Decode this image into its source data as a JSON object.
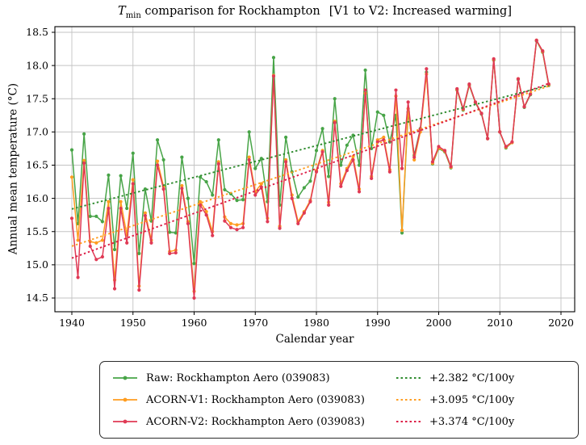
{
  "title": {
    "t": "T",
    "sub": "min",
    "main": " comparison for Rockhampton",
    "bracket": "[V1 to V2: Increased warming]"
  },
  "x_label": "Calendar year",
  "y_label": "Annual mean temperature (°C)",
  "chart_data": {
    "type": "line",
    "x_start": 1940,
    "x_end": 2018,
    "x_step": 1,
    "x_ticks": [
      1940,
      1950,
      1960,
      1970,
      1980,
      1990,
      2000,
      2010,
      2020
    ],
    "y_ticks": [
      14.5,
      15.0,
      15.5,
      16.0,
      16.5,
      17.0,
      17.5,
      18.0,
      18.5
    ],
    "xlim": [
      1937.2,
      2022.2
    ],
    "ylim": [
      14.29,
      18.59
    ],
    "grid": true,
    "legend_position": "bottom",
    "series": [
      {
        "name": "Raw: Rockhampton Aero (039083)",
        "color": "#47a447",
        "values": [
          16.73,
          15.62,
          16.97,
          15.73,
          15.73,
          15.65,
          16.35,
          15.23,
          16.34,
          15.85,
          16.68,
          15.17,
          16.14,
          15.66,
          16.88,
          16.58,
          15.49,
          15.48,
          16.62,
          16.0,
          15.02,
          16.32,
          16.25,
          16.05,
          16.88,
          16.13,
          16.07,
          15.97,
          15.98,
          17.0,
          16.45,
          16.6,
          15.95,
          18.12,
          15.9,
          16.92,
          16.4,
          16.02,
          16.16,
          16.26,
          16.72,
          17.05,
          16.33,
          17.5,
          16.5,
          16.8,
          16.95,
          16.5,
          17.93,
          16.75,
          17.3,
          17.25,
          16.85,
          17.25,
          15.48,
          17.3,
          16.65,
          17.05,
          17.9,
          16.52,
          16.75,
          16.7,
          16.46,
          17.63,
          17.33,
          17.7,
          17.44,
          17.27,
          16.9,
          18.08,
          17.0,
          16.76,
          16.84,
          17.79,
          17.37,
          17.56,
          18.37,
          18.2,
          17.7
        ]
      },
      {
        "name": "ACORN-V1: Rockhampton Aero (039083)",
        "color": "#ff9d20",
        "values": [
          16.32,
          15.37,
          16.57,
          15.35,
          15.33,
          15.37,
          15.95,
          14.77,
          15.95,
          15.45,
          16.28,
          14.68,
          15.78,
          15.37,
          16.56,
          16.18,
          15.2,
          15.22,
          16.19,
          15.65,
          14.6,
          15.95,
          15.8,
          15.5,
          16.55,
          15.72,
          15.62,
          15.6,
          15.62,
          16.62,
          16.1,
          16.22,
          15.7,
          17.85,
          15.58,
          16.58,
          16.05,
          15.65,
          15.8,
          15.97,
          16.42,
          16.72,
          15.94,
          17.16,
          16.22,
          16.45,
          16.63,
          16.14,
          17.58,
          16.33,
          16.88,
          16.92,
          16.43,
          17.54,
          15.52,
          17.35,
          16.58,
          17.0,
          17.87,
          16.53,
          16.76,
          16.71,
          16.47,
          17.64,
          17.34,
          17.71,
          17.45,
          17.28,
          16.9,
          18.09,
          17.0,
          16.77,
          16.84,
          17.8,
          17.38,
          17.57,
          18.38,
          18.21,
          17.71
        ]
      },
      {
        "name": "ACORN-V2: Rockhampton Aero (039083)",
        "color": "#e03a55",
        "values": [
          15.7,
          14.81,
          16.53,
          15.28,
          15.08,
          15.12,
          15.85,
          14.64,
          15.85,
          15.33,
          16.22,
          14.62,
          15.74,
          15.33,
          16.5,
          16.14,
          15.17,
          15.18,
          16.15,
          15.62,
          14.5,
          15.9,
          15.75,
          15.44,
          16.52,
          15.66,
          15.56,
          15.53,
          15.56,
          16.58,
          16.05,
          16.17,
          15.65,
          17.84,
          15.55,
          16.55,
          16.0,
          15.62,
          15.78,
          15.95,
          16.4,
          16.7,
          15.9,
          17.14,
          16.18,
          16.42,
          16.58,
          16.1,
          17.63,
          16.3,
          16.85,
          16.88,
          16.4,
          17.63,
          16.45,
          17.45,
          16.62,
          17.04,
          17.95,
          16.55,
          16.78,
          16.72,
          16.48,
          17.65,
          17.35,
          17.72,
          17.45,
          17.28,
          16.9,
          18.1,
          17.0,
          16.78,
          16.85,
          17.8,
          17.38,
          17.57,
          18.38,
          18.22,
          17.72
        ]
      }
    ],
    "trends": [
      {
        "label": "+2.382 °C/100y",
        "color": "#2e8b2e",
        "start": [
          1940,
          15.84
        ],
        "end": [
          2018,
          17.7
        ]
      },
      {
        "label": "+3.095 °C/100y",
        "color": "#ff9d20",
        "start": [
          1940,
          15.28
        ],
        "end": [
          2018,
          17.69
        ]
      },
      {
        "label": "+3.374 °C/100y",
        "color": "#dc1e46",
        "start": [
          1940,
          15.1
        ],
        "end": [
          2018,
          17.73
        ]
      }
    ]
  }
}
